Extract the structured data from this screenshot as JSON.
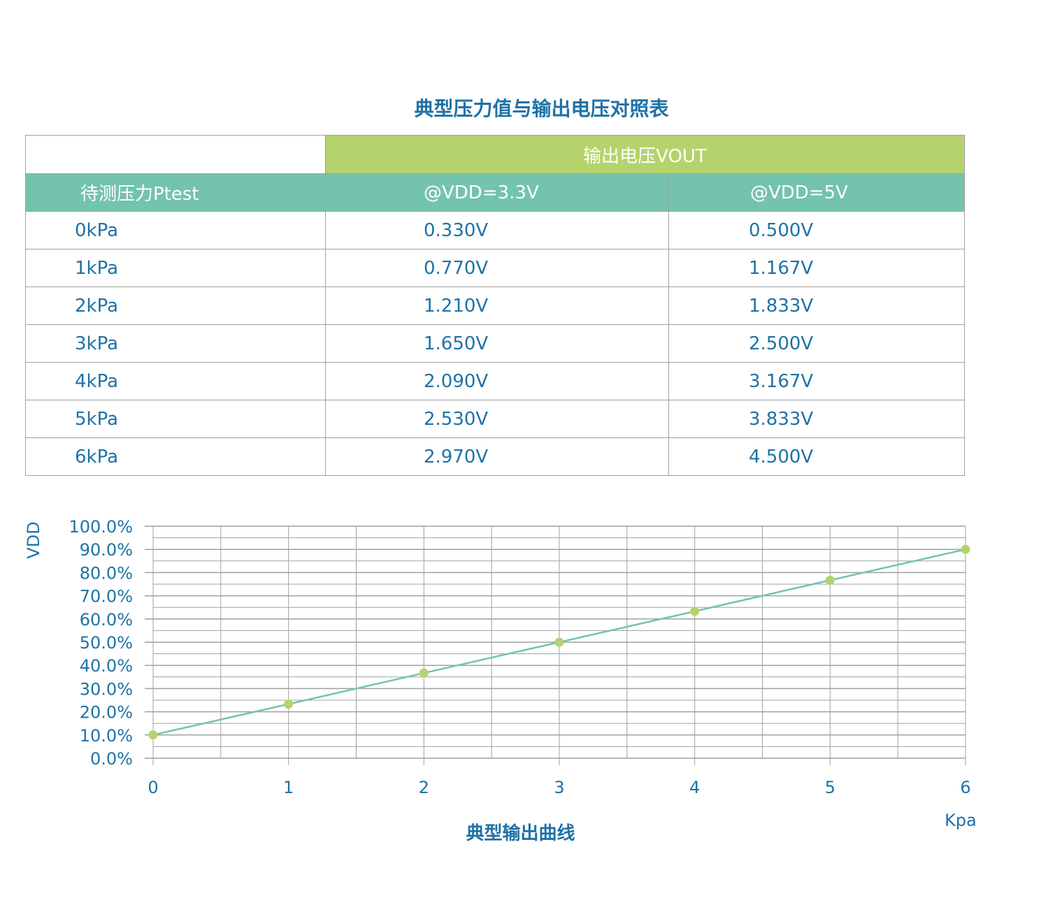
{
  "title": "典型压力值与输出电压对照表",
  "table": {
    "group_header": "输出电压VOUT",
    "headers": [
      "待测压力Ptest",
      "@VDD=3.3V",
      "@VDD=5V"
    ],
    "rows": [
      [
        "0kPa",
        "0.330V",
        "0.500V"
      ],
      [
        "1kPa",
        "0.770V",
        "1.167V"
      ],
      [
        "2kPa",
        "1.210V",
        "1.833V"
      ],
      [
        "3kPa",
        "1.650V",
        "2.500V"
      ],
      [
        "4kPa",
        "2.090V",
        "3.167V"
      ],
      [
        "5kPa",
        "2.530V",
        "3.833V"
      ],
      [
        "6kPa",
        "2.970V",
        "4.500V"
      ]
    ],
    "colors": {
      "group_header_bg": "#b4d36c",
      "header_bg": "#74c3ad",
      "text": "#1f72a6"
    }
  },
  "chart_data": {
    "type": "line",
    "title": "典型输出曲线",
    "xlabel": "Kpa",
    "ylabel": "VDD",
    "x": [
      0,
      1,
      2,
      3,
      4,
      5,
      6
    ],
    "values": [
      10.0,
      23.3,
      36.7,
      50.0,
      63.3,
      76.7,
      90.0
    ],
    "xlim": [
      0,
      6
    ],
    "ylim": [
      0,
      100
    ],
    "x_ticks": [
      "0",
      "1",
      "2",
      "3",
      "4",
      "5",
      "6"
    ],
    "y_ticks": [
      "0.0%",
      "10.0%",
      "20.0%",
      "30.0%",
      "40.0%",
      "50.0%",
      "60.0%",
      "70.0%",
      "80.0%",
      "90.0%",
      "100.0%"
    ],
    "grid": true,
    "line_color": "#74c3ad",
    "marker_color": "#b4d36c"
  }
}
